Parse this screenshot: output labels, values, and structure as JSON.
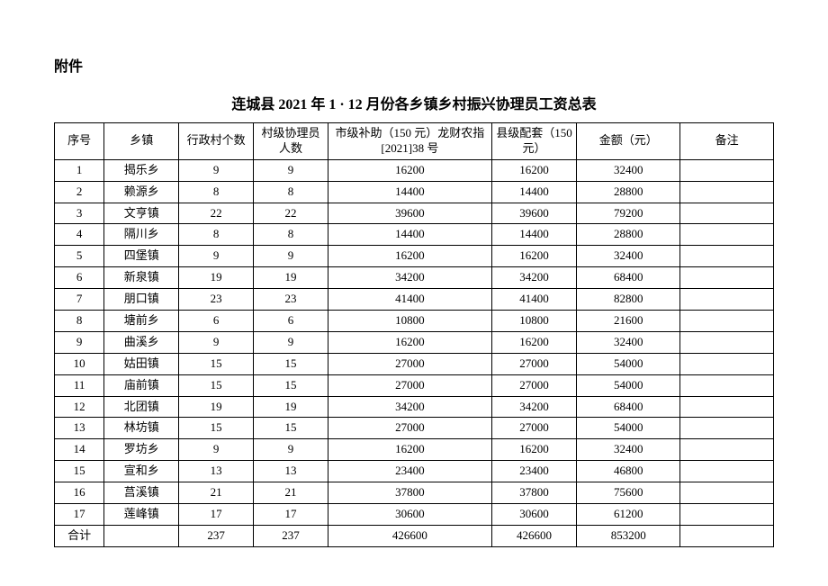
{
  "attachment_label": "附件",
  "title": "连城县 2021 年 1 · 12 月份各乡镇乡村振兴协理员工资总表",
  "columns": {
    "seq": "序号",
    "town": "乡镇",
    "villages": "行政村个数",
    "staff": "村级协理员人数",
    "city_sub": "市级补助（150 元）龙财农指[2021]38 号",
    "county_sub": "县级配套（150 元）",
    "amount": "金额（元）",
    "remark": "备注"
  },
  "rows": [
    {
      "seq": "1",
      "town": "揭乐乡",
      "villages": "9",
      "staff": "9",
      "city": "16200",
      "county": "16200",
      "amount": "32400",
      "remark": ""
    },
    {
      "seq": "2",
      "town": "赖源乡",
      "villages": "8",
      "staff": "8",
      "city": "14400",
      "county": "14400",
      "amount": "28800",
      "remark": ""
    },
    {
      "seq": "3",
      "town": "文亨镇",
      "villages": "22",
      "staff": "22",
      "city": "39600",
      "county": "39600",
      "amount": "79200",
      "remark": ""
    },
    {
      "seq": "4",
      "town": "隔川乡",
      "villages": "8",
      "staff": "8",
      "city": "14400",
      "county": "14400",
      "amount": "28800",
      "remark": ""
    },
    {
      "seq": "5",
      "town": "四堡镇",
      "villages": "9",
      "staff": "9",
      "city": "16200",
      "county": "16200",
      "amount": "32400",
      "remark": ""
    },
    {
      "seq": "6",
      "town": "新泉镇",
      "villages": "19",
      "staff": "19",
      "city": "34200",
      "county": "34200",
      "amount": "68400",
      "remark": ""
    },
    {
      "seq": "7",
      "town": "朋口镇",
      "villages": "23",
      "staff": "23",
      "city": "41400",
      "county": "41400",
      "amount": "82800",
      "remark": ""
    },
    {
      "seq": "8",
      "town": "塘前乡",
      "villages": "6",
      "staff": "6",
      "city": "10800",
      "county": "10800",
      "amount": "21600",
      "remark": ""
    },
    {
      "seq": "9",
      "town": "曲溪乡",
      "villages": "9",
      "staff": "9",
      "city": "16200",
      "county": "16200",
      "amount": "32400",
      "remark": ""
    },
    {
      "seq": "10",
      "town": "姑田镇",
      "villages": "15",
      "staff": "15",
      "city": "27000",
      "county": "27000",
      "amount": "54000",
      "remark": ""
    },
    {
      "seq": "11",
      "town": "庙前镇",
      "villages": "15",
      "staff": "15",
      "city": "27000",
      "county": "27000",
      "amount": "54000",
      "remark": ""
    },
    {
      "seq": "12",
      "town": "北团镇",
      "villages": "19",
      "staff": "19",
      "city": "34200",
      "county": "34200",
      "amount": "68400",
      "remark": ""
    },
    {
      "seq": "13",
      "town": "林坊镇",
      "villages": "15",
      "staff": "15",
      "city": "27000",
      "county": "27000",
      "amount": "54000",
      "remark": ""
    },
    {
      "seq": "14",
      "town": "罗坊乡",
      "villages": "9",
      "staff": "9",
      "city": "16200",
      "county": "16200",
      "amount": "32400",
      "remark": ""
    },
    {
      "seq": "15",
      "town": "宣和乡",
      "villages": "13",
      "staff": "13",
      "city": "23400",
      "county": "23400",
      "amount": "46800",
      "remark": ""
    },
    {
      "seq": "16",
      "town": "莒溪镇",
      "villages": "21",
      "staff": "21",
      "city": "37800",
      "county": "37800",
      "amount": "75600",
      "remark": ""
    },
    {
      "seq": "17",
      "town": "莲峰镇",
      "villages": "17",
      "staff": "17",
      "city": "30600",
      "county": "30600",
      "amount": "61200",
      "remark": ""
    }
  ],
  "total": {
    "seq": "合计",
    "town": "",
    "villages": "237",
    "staff": "237",
    "city": "426600",
    "county": "426600",
    "amount": "853200",
    "remark": ""
  }
}
